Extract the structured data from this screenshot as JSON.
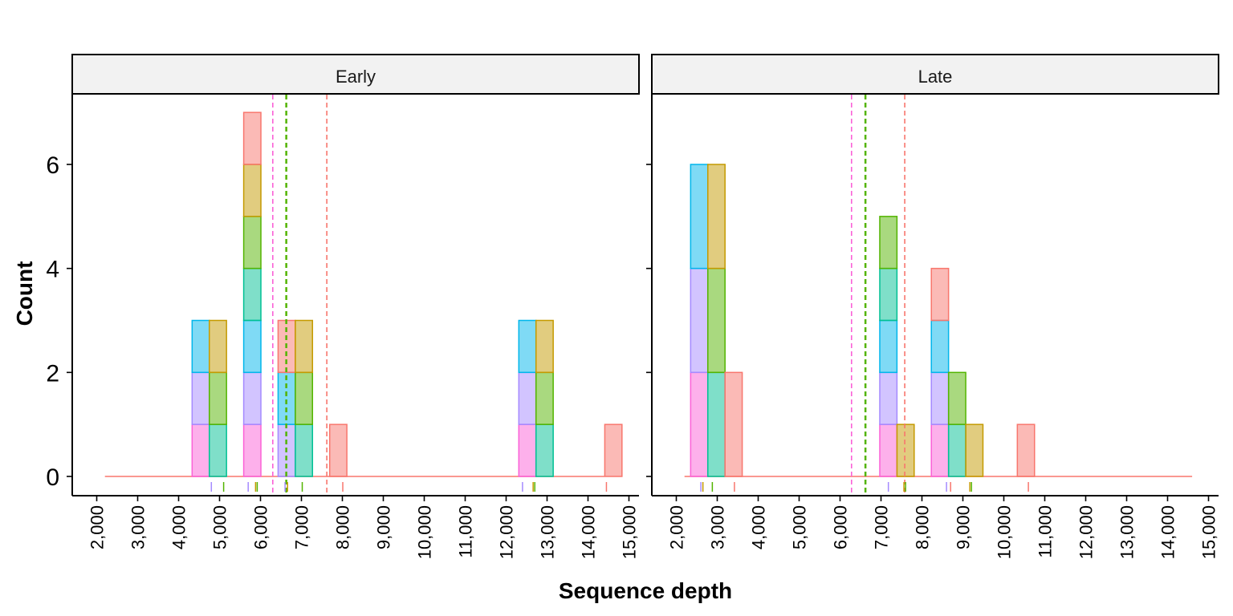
{
  "chart_data": {
    "type": "histogram",
    "xlabel": "Sequence depth",
    "ylabel": "Count",
    "xlim": [
      2000,
      15000
    ],
    "x_ticks": [
      2000,
      3000,
      4000,
      5000,
      6000,
      7000,
      8000,
      9000,
      10000,
      11000,
      12000,
      13000,
      14000,
      15000
    ],
    "x_tick_labels": [
      "2,000",
      "3,000",
      "4,000",
      "5,000",
      "6,000",
      "7,000",
      "8,000",
      "9,000",
      "10,000",
      "11,000",
      "12,000",
      "13,000",
      "14,000",
      "15,000"
    ],
    "ylim": [
      0,
      7
    ],
    "y_ticks": [
      0,
      2,
      4,
      6
    ],
    "y_tick_labels": [
      "0",
      "2",
      "4",
      "6"
    ],
    "grid": false,
    "legend": "none",
    "bin_width": 420,
    "group_colors": {
      "red": "#F8766D",
      "gold": "#C49A00",
      "green": "#53B400",
      "teal": "#00C094",
      "blue": "#00B6EB",
      "purple": "#A58AFF",
      "pink": "#FB61D7"
    },
    "panels": [
      {
        "strip": "Early",
        "baseline": [
          2200,
          14400
        ],
        "bins": [
          {
            "center": 4540,
            "stack": [
              [
                "pink",
                1
              ],
              [
                "purple",
                1
              ],
              [
                "blue",
                1
              ]
            ]
          },
          {
            "center": 4960,
            "stack": [
              [
                "teal",
                1
              ],
              [
                "green",
                1
              ],
              [
                "gold",
                1
              ]
            ]
          },
          {
            "center": 5800,
            "stack": [
              [
                "pink",
                1
              ],
              [
                "purple",
                1
              ],
              [
                "blue",
                1
              ],
              [
                "teal",
                1
              ],
              [
                "green",
                1
              ],
              [
                "gold",
                1
              ],
              [
                "red",
                1
              ]
            ]
          },
          {
            "center": 6640,
            "stack": [
              [
                "purple",
                1
              ],
              [
                "blue",
                1
              ],
              [
                "red",
                1
              ]
            ]
          },
          {
            "center": 7060,
            "stack": [
              [
                "teal",
                1
              ],
              [
                "green",
                1
              ],
              [
                "gold",
                1
              ]
            ]
          },
          {
            "center": 7900,
            "stack": [
              [
                "red",
                1
              ]
            ]
          },
          {
            "center": 12520,
            "stack": [
              [
                "pink",
                1
              ],
              [
                "purple",
                1
              ],
              [
                "blue",
                1
              ]
            ]
          },
          {
            "center": 12940,
            "stack": [
              [
                "teal",
                1
              ],
              [
                "green",
                1
              ],
              [
                "gold",
                1
              ]
            ]
          },
          {
            "center": 14620,
            "stack": [
              [
                "red",
                1
              ]
            ]
          }
        ],
        "mean_lines": [
          {
            "group": "pink",
            "x": 6300
          },
          {
            "group": "green",
            "x": 6630
          },
          {
            "group": "red",
            "x": 7620
          }
        ],
        "rug": [
          {
            "group": "purple",
            "x": 4800
          },
          {
            "group": "green",
            "x": 5100
          },
          {
            "group": "purple",
            "x": 5700
          },
          {
            "group": "gold",
            "x": 5880
          },
          {
            "group": "green",
            "x": 5920
          },
          {
            "group": "purple",
            "x": 6600
          },
          {
            "group": "gold",
            "x": 6660
          },
          {
            "group": "green",
            "x": 7020
          },
          {
            "group": "red",
            "x": 8010
          },
          {
            "group": "purple",
            "x": 12400
          },
          {
            "group": "gold",
            "x": 12660
          },
          {
            "group": "green",
            "x": 12700
          },
          {
            "group": "red",
            "x": 14450
          }
        ]
      },
      {
        "strip": "Late",
        "baseline": [
          2200,
          14600
        ],
        "bins": [
          {
            "center": 2560,
            "stack": [
              [
                "pink",
                2
              ],
              [
                "purple",
                2
              ],
              [
                "blue",
                2
              ]
            ]
          },
          {
            "center": 2980,
            "stack": [
              [
                "teal",
                2
              ],
              [
                "green",
                2
              ],
              [
                "gold",
                2
              ]
            ]
          },
          {
            "center": 3400,
            "stack": [
              [
                "red",
                2
              ]
            ]
          },
          {
            "center": 7180,
            "stack": [
              [
                "pink",
                1
              ],
              [
                "purple",
                1
              ],
              [
                "blue",
                1
              ],
              [
                "teal",
                1
              ],
              [
                "green",
                1
              ]
            ]
          },
          {
            "center": 7600,
            "stack": [
              [
                "gold",
                1
              ]
            ]
          },
          {
            "center": 8440,
            "stack": [
              [
                "pink",
                1
              ],
              [
                "purple",
                1
              ],
              [
                "blue",
                1
              ],
              [
                "red",
                1
              ]
            ]
          },
          {
            "center": 8860,
            "stack": [
              [
                "teal",
                1
              ],
              [
                "green",
                1
              ]
            ]
          },
          {
            "center": 9280,
            "stack": [
              [
                "gold",
                1
              ]
            ]
          },
          {
            "center": 10540,
            "stack": [
              [
                "red",
                1
              ]
            ]
          }
        ],
        "mean_lines": [
          {
            "group": "pink",
            "x": 6280
          },
          {
            "group": "green",
            "x": 6620
          },
          {
            "group": "red",
            "x": 7580
          }
        ],
        "rug": [
          {
            "group": "purple",
            "x": 2600
          },
          {
            "group": "gold",
            "x": 2650
          },
          {
            "group": "green",
            "x": 2880
          },
          {
            "group": "red",
            "x": 3420
          },
          {
            "group": "purple",
            "x": 7180
          },
          {
            "group": "gold",
            "x": 7560
          },
          {
            "group": "green",
            "x": 7600
          },
          {
            "group": "purple",
            "x": 8600
          },
          {
            "group": "red",
            "x": 8700
          },
          {
            "group": "gold",
            "x": 9170
          },
          {
            "group": "green",
            "x": 9210
          },
          {
            "group": "red",
            "x": 10600
          }
        ]
      }
    ]
  }
}
